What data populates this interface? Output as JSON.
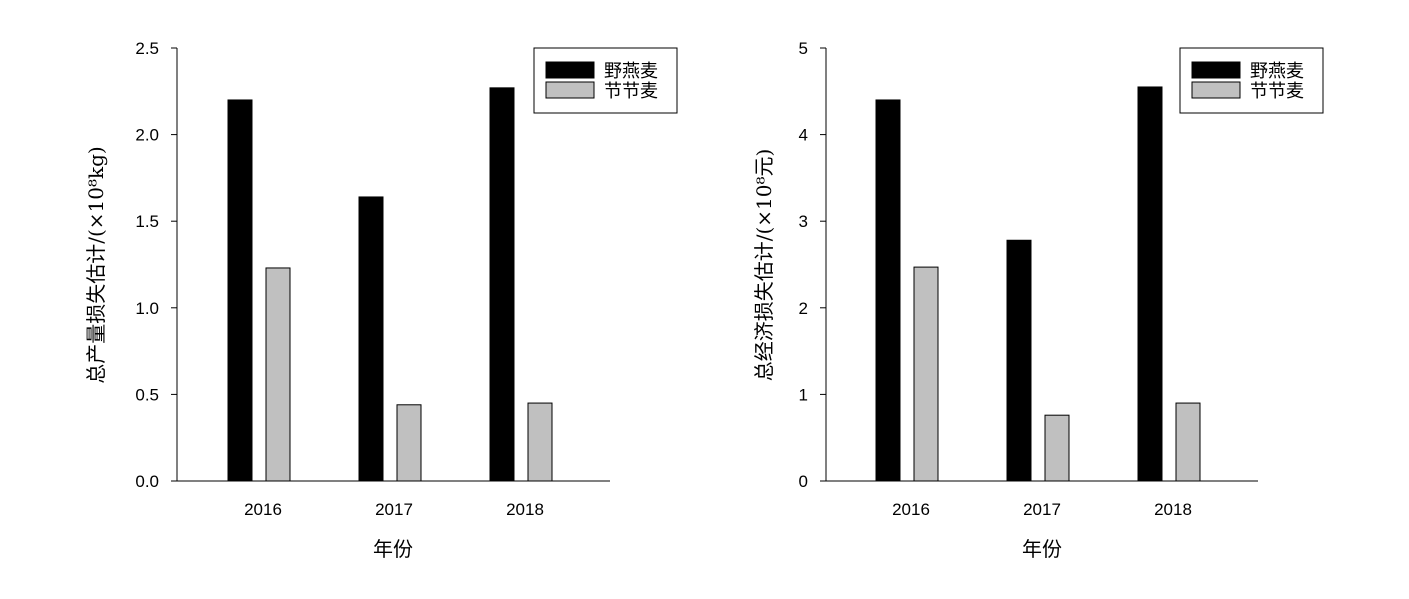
{
  "chart_data": [
    {
      "type": "bar",
      "categories": [
        "2016",
        "2017",
        "2018"
      ],
      "series": [
        {
          "name": "野燕麦",
          "values": [
            2.2,
            1.64,
            2.27
          ],
          "color": "#000000"
        },
        {
          "name": "节节麦",
          "values": [
            1.23,
            0.44,
            0.45
          ],
          "color": "#c0c0c0"
        }
      ],
      "xlabel": "年份",
      "ylabel": "总产量损失估计/(×10⁸kg)",
      "ylim": [
        0,
        2.5
      ],
      "yticks": [
        "0.0",
        "0.5",
        "1.0",
        "1.5",
        "2.0",
        "2.5"
      ],
      "ytick_values": [
        0,
        0.5,
        1.0,
        1.5,
        2.0,
        2.5
      ],
      "legend": "top-right",
      "grid": false
    },
    {
      "type": "bar",
      "categories": [
        "2016",
        "2017",
        "2018"
      ],
      "series": [
        {
          "name": "野燕麦",
          "values": [
            4.4,
            2.78,
            4.55
          ],
          "color": "#000000"
        },
        {
          "name": "节节麦",
          "values": [
            2.47,
            0.76,
            0.9
          ],
          "color": "#c0c0c0"
        }
      ],
      "xlabel": "年份",
      "ylabel": "总经济损失估计/(×10⁸元)",
      "ylim": [
        0,
        5
      ],
      "yticks": [
        "0",
        "1",
        "2",
        "3",
        "4",
        "5"
      ],
      "ytick_values": [
        0,
        1,
        2,
        3,
        4,
        5
      ],
      "legend": "top-right",
      "grid": false
    }
  ]
}
